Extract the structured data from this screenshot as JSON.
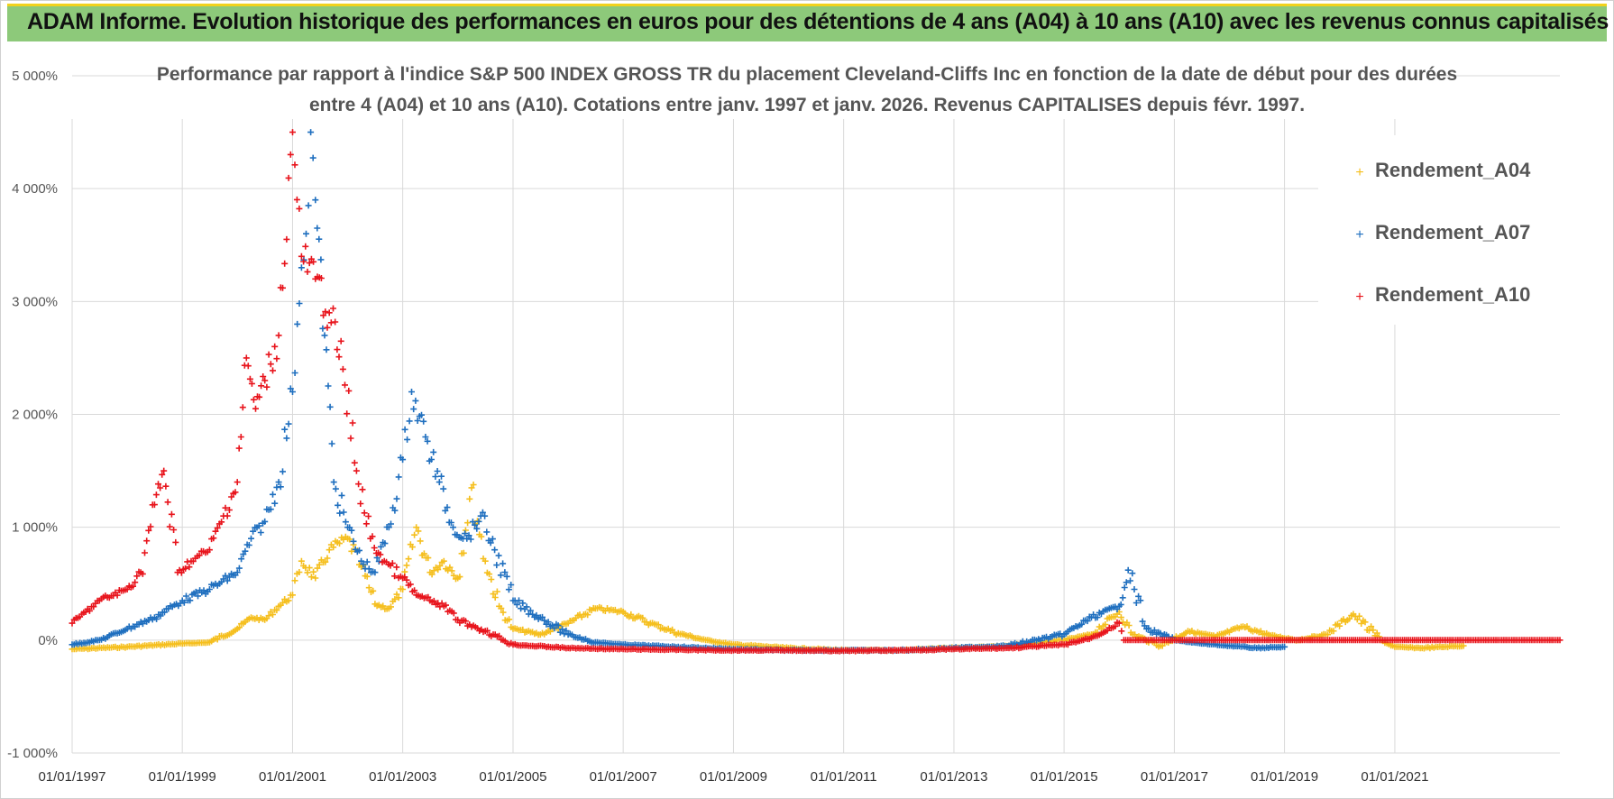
{
  "banner": {
    "title": "ADAM Informe. Evolution historique des performances en euros pour des détentions de 4 ans (A04) à 10 ans (A10) avec les revenus connus capitalisés"
  },
  "colors": {
    "banner_bg": "#8dc97a",
    "banner_accent": "#f2d21c",
    "A04": "#f5bf1e",
    "A07": "#1f6fbf",
    "A10": "#e8141c"
  },
  "chart_data": {
    "type": "scatter",
    "title_line1": "Performance par rapport à l'indice S&P 500 INDEX GROSS TR  du placement Cleveland-Cliffs Inc en fonction de la date de début pour des durées",
    "title_line2": "entre 4 (A04) et 10 ans (A10).  Cotations entre janv. 1997 et janv. 2026. Revenus CAPITALISES depuis févr. 1997.",
    "ylim": [
      -1000,
      5000
    ],
    "yticks": [
      -1000,
      0,
      1000,
      2000,
      3000,
      4000,
      5000
    ],
    "ytick_labels": [
      "-1 000%",
      "0%",
      "1 000%",
      "2 000%",
      "3 000%",
      "4 000%",
      "5 000%"
    ],
    "xlim": [
      "1997-01-01",
      "2023-12-31"
    ],
    "xtick_labels": [
      "01/01/1997",
      "01/01/1999",
      "01/01/2001",
      "01/01/2003",
      "01/01/2005",
      "01/01/2007",
      "01/01/2009",
      "01/01/2011",
      "01/01/2013",
      "01/01/2015",
      "01/01/2017",
      "01/01/2019",
      "01/01/2021"
    ],
    "grid": true,
    "legend_position": "top-right",
    "marker": "+",
    "series": [
      {
        "name": "Rendement_A04",
        "color": "#f5bf1e",
        "points": [
          [
            "1997-01-01",
            -80
          ],
          [
            "1998-01-01",
            -60
          ],
          [
            "1999-01-01",
            -30
          ],
          [
            "1999-07-01",
            -20
          ],
          [
            "2000-01-01",
            100
          ],
          [
            "2000-04-01",
            200
          ],
          [
            "2000-07-01",
            180
          ],
          [
            "2000-10-01",
            300
          ],
          [
            "2001-01-01",
            400
          ],
          [
            "2001-03-01",
            700
          ],
          [
            "2001-06-01",
            550
          ],
          [
            "2001-09-01",
            800
          ],
          [
            "2002-01-01",
            900
          ],
          [
            "2002-04-01",
            650
          ],
          [
            "2002-07-01",
            320
          ],
          [
            "2002-10-01",
            280
          ],
          [
            "2003-01-01",
            450
          ],
          [
            "2003-04-01",
            1000
          ],
          [
            "2003-07-01",
            600
          ],
          [
            "2003-10-01",
            700
          ],
          [
            "2004-01-01",
            550
          ],
          [
            "2004-04-01",
            1350
          ],
          [
            "2004-07-01",
            700
          ],
          [
            "2004-10-01",
            300
          ],
          [
            "2005-01-01",
            100
          ],
          [
            "2005-07-01",
            50
          ],
          [
            "2006-01-01",
            150
          ],
          [
            "2006-07-01",
            280
          ],
          [
            "2007-01-01",
            250
          ],
          [
            "2007-07-01",
            150
          ],
          [
            "2008-01-01",
            60
          ],
          [
            "2008-07-01",
            0
          ],
          [
            "2009-01-01",
            -40
          ],
          [
            "2010-01-01",
            -70
          ],
          [
            "2011-01-01",
            -90
          ],
          [
            "2012-01-01",
            -90
          ],
          [
            "2013-01-01",
            -70
          ],
          [
            "2014-01-01",
            -50
          ],
          [
            "2015-01-01",
            0
          ],
          [
            "2015-07-01",
            50
          ],
          [
            "2016-01-01",
            250
          ],
          [
            "2016-04-01",
            50
          ],
          [
            "2016-10-01",
            -50
          ],
          [
            "2017-04-01",
            80
          ],
          [
            "2017-10-01",
            30
          ],
          [
            "2018-04-01",
            120
          ],
          [
            "2018-10-01",
            40
          ],
          [
            "2019-04-01",
            0
          ],
          [
            "2019-10-01",
            50
          ],
          [
            "2020-04-01",
            230
          ],
          [
            "2020-10-01",
            0
          ],
          [
            "2021-01-01",
            -60
          ],
          [
            "2021-07-01",
            -70
          ],
          [
            "2022-04-01",
            -50
          ]
        ]
      },
      {
        "name": "Rendement_A07",
        "color": "#1f6fbf",
        "points": [
          [
            "1997-01-01",
            -40
          ],
          [
            "1997-07-01",
            0
          ],
          [
            "1998-01-01",
            100
          ],
          [
            "1998-07-01",
            200
          ],
          [
            "1999-01-01",
            350
          ],
          [
            "1999-07-01",
            450
          ],
          [
            "2000-01-01",
            600
          ],
          [
            "2000-04-01",
            900
          ],
          [
            "2000-07-01",
            1050
          ],
          [
            "2000-10-01",
            1400
          ],
          [
            "2001-01-01",
            2200
          ],
          [
            "2001-02-01",
            2800
          ],
          [
            "2001-03-01",
            3300
          ],
          [
            "2001-04-01",
            3600
          ],
          [
            "2001-05-01",
            4500
          ],
          [
            "2001-06-01",
            3900
          ],
          [
            "2001-08-01",
            2700
          ],
          [
            "2001-10-01",
            1400
          ],
          [
            "2002-01-01",
            1000
          ],
          [
            "2002-04-01",
            700
          ],
          [
            "2002-07-01",
            600
          ],
          [
            "2002-10-01",
            1000
          ],
          [
            "2003-01-01",
            1600
          ],
          [
            "2003-03-01",
            2200
          ],
          [
            "2003-06-01",
            1800
          ],
          [
            "2003-09-01",
            1400
          ],
          [
            "2003-12-01",
            1000
          ],
          [
            "2004-03-01",
            900
          ],
          [
            "2004-06-01",
            1100
          ],
          [
            "2004-09-01",
            800
          ],
          [
            "2005-01-01",
            350
          ],
          [
            "2005-07-01",
            200
          ],
          [
            "2006-01-01",
            50
          ],
          [
            "2006-07-01",
            -20
          ],
          [
            "2007-01-01",
            -40
          ],
          [
            "2008-01-01",
            -60
          ],
          [
            "2009-01-01",
            -80
          ],
          [
            "2010-01-01",
            -90
          ],
          [
            "2011-01-01",
            -90
          ],
          [
            "2012-01-01",
            -90
          ],
          [
            "2013-01-01",
            -70
          ],
          [
            "2014-01-01",
            -50
          ],
          [
            "2015-01-01",
            50
          ],
          [
            "2015-07-01",
            200
          ],
          [
            "2016-01-01",
            300
          ],
          [
            "2016-03-01",
            620
          ],
          [
            "2016-07-01",
            100
          ],
          [
            "2017-01-01",
            0
          ],
          [
            "2017-07-01",
            -30
          ],
          [
            "2018-01-01",
            -50
          ],
          [
            "2018-07-01",
            -70
          ],
          [
            "2019-01-01",
            -60
          ]
        ]
      },
      {
        "name": "Rendement_A10",
        "color": "#e8141c",
        "points": [
          [
            "1997-01-01",
            150
          ],
          [
            "1997-04-01",
            250
          ],
          [
            "1997-07-01",
            350
          ],
          [
            "1998-01-01",
            450
          ],
          [
            "1998-04-01",
            600
          ],
          [
            "1998-07-01",
            1200
          ],
          [
            "1998-09-01",
            1500
          ],
          [
            "1998-12-01",
            600
          ],
          [
            "1999-03-01",
            700
          ],
          [
            "1999-07-01",
            800
          ],
          [
            "1999-10-01",
            1100
          ],
          [
            "2000-01-01",
            1400
          ],
          [
            "2000-03-01",
            2500
          ],
          [
            "2000-05-01",
            2050
          ],
          [
            "2000-07-01",
            2300
          ],
          [
            "2000-10-01",
            2700
          ],
          [
            "2001-01-01",
            4500
          ],
          [
            "2001-03-01",
            3400
          ],
          [
            "2001-06-01",
            3200
          ],
          [
            "2001-09-01",
            2900
          ],
          [
            "2001-12-01",
            2400
          ],
          [
            "2002-03-01",
            1500
          ],
          [
            "2002-06-01",
            900
          ],
          [
            "2002-09-01",
            700
          ],
          [
            "2003-01-01",
            550
          ],
          [
            "2003-04-01",
            400
          ],
          [
            "2003-07-01",
            350
          ],
          [
            "2003-10-01",
            300
          ],
          [
            "2004-01-01",
            180
          ],
          [
            "2004-07-01",
            80
          ],
          [
            "2005-01-01",
            -40
          ],
          [
            "2006-01-01",
            -70
          ],
          [
            "2007-01-01",
            -80
          ],
          [
            "2008-01-01",
            -85
          ],
          [
            "2009-01-01",
            -90
          ],
          [
            "2010-01-01",
            -90
          ],
          [
            "2011-01-01",
            -95
          ],
          [
            "2012-01-01",
            -90
          ],
          [
            "2013-01-01",
            -80
          ],
          [
            "2014-01-01",
            -70
          ],
          [
            "2015-01-01",
            -40
          ],
          [
            "2015-07-01",
            20
          ],
          [
            "2016-01-01",
            150
          ],
          [
            "2016-02-01",
            0
          ],
          [
            "2017-01-01",
            0
          ],
          [
            "2018-01-01",
            0
          ],
          [
            "2019-01-01",
            0
          ],
          [
            "2020-01-01",
            0
          ],
          [
            "2021-01-01",
            0
          ],
          [
            "2022-01-01",
            0
          ],
          [
            "2023-12-31",
            0
          ]
        ]
      }
    ]
  }
}
